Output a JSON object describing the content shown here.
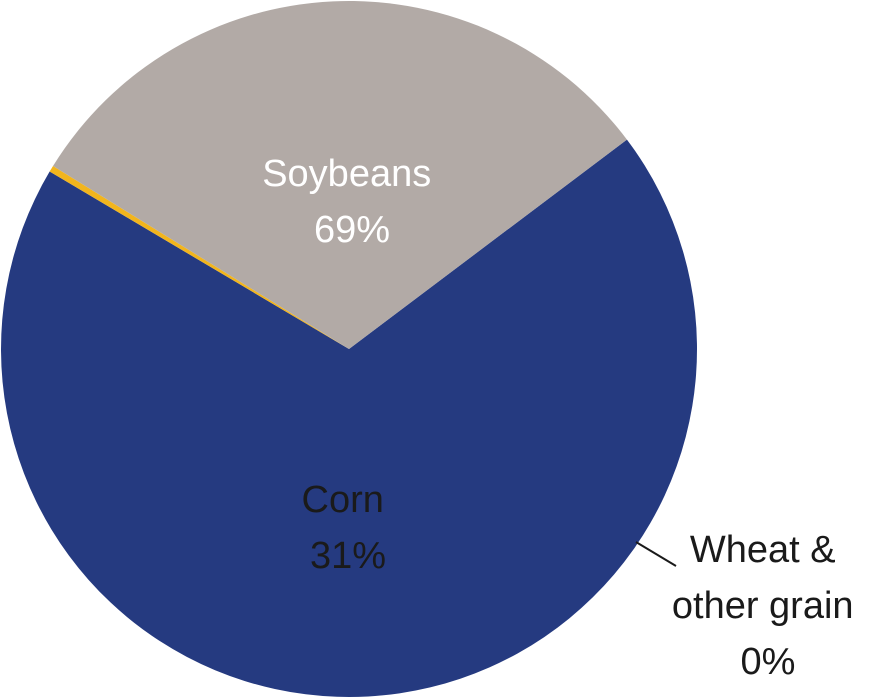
{
  "chart_data": {
    "type": "pie",
    "slices": [
      {
        "label": "Soybeans",
        "value": 69,
        "value_label": "69%",
        "color": "#253a80",
        "label_color": "#ffffff"
      },
      {
        "label": "Wheat & other grain",
        "label_lines": [
          "Wheat &",
          "other grain"
        ],
        "value": 0.3,
        "value_label": "0%",
        "color": "#f2b51d",
        "label_color": "#1a1a1a"
      },
      {
        "label": "Corn",
        "value": 31,
        "value_label": "31%",
        "color": "#b2aaa6",
        "label_color": "#1a1a1a"
      }
    ],
    "start_angle_deg": -37,
    "direction": "clockwise",
    "legend": "none",
    "title": ""
  }
}
